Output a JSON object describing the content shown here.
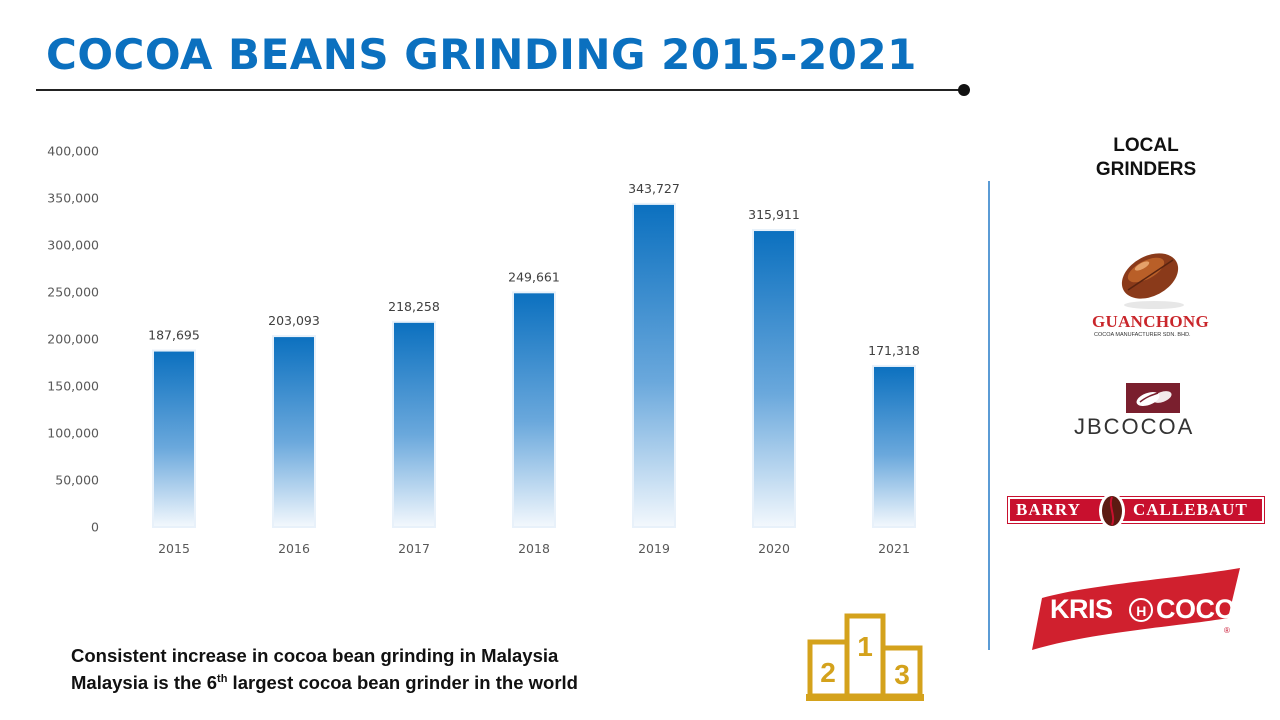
{
  "header": {
    "title": "COCOA BEANS GRINDING 2015-2021"
  },
  "chart_data": {
    "type": "bar",
    "categories": [
      "2015",
      "2016",
      "2017",
      "2018",
      "2019",
      "2020",
      "2021"
    ],
    "values": [
      187695,
      203093,
      218258,
      249661,
      343727,
      315911,
      171318
    ],
    "data_labels": [
      "187,695",
      "203,093",
      "218,258",
      "249,661",
      "343,727",
      "315,911",
      "171,318"
    ],
    "y_ticks": [
      "0",
      "50,000",
      "100,000",
      "150,000",
      "200,000",
      "250,000",
      "300,000",
      "350,000",
      "400,000"
    ],
    "ylim": [
      0,
      400000
    ],
    "grid": false,
    "legend": "none",
    "bar_color": "#0b70bf",
    "title": "",
    "xlabel": "",
    "ylabel": ""
  },
  "sidebar": {
    "title_line1": "LOCAL",
    "title_line2": "GRINDERS",
    "logos": [
      {
        "name": "guan-chong",
        "text": "GUANCHONG",
        "subtext": "COCOA MANUFACTURER SDN. BHD.",
        "color": "#c9262b"
      },
      {
        "name": "jb-cocoa",
        "text": "JBCOCOA",
        "color": "#7a1f2e"
      },
      {
        "name": "barry-callebaut",
        "text_left": "BARRY",
        "text_right": "CALLEBAUT",
        "color": "#c8102e"
      },
      {
        "name": "krishcoco",
        "text_left": "KRIS",
        "text_mid": "H",
        "text_right": "COCO",
        "registered": "®",
        "color": "#d0202e"
      }
    ]
  },
  "notes": {
    "line1": "Consistent increase in cocoa bean grinding in Malaysia",
    "line2_pre": "Malaysia is the 6",
    "line2_sup": "th",
    "line2_post": " largest cocoa bean grinder in the world"
  },
  "podium": {
    "icon": "podium-icon",
    "labels": [
      "2",
      "1",
      "3"
    ],
    "color": "#d4a21c"
  }
}
